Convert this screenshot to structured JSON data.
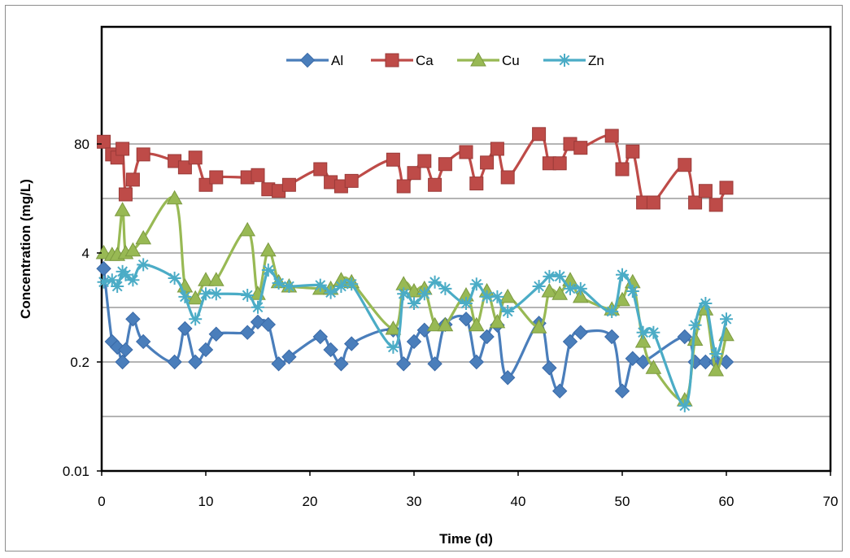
{
  "chart_data": {
    "type": "line",
    "xlabel": "Time (d)",
    "ylabel": "Concentration (mg/L)",
    "xlim": [
      0,
      70
    ],
    "x_ticks": [
      "0",
      "10",
      "20",
      "30",
      "40",
      "50",
      "60",
      "70"
    ],
    "y_scale": "log",
    "ylim": [
      0.01,
      2000
    ],
    "y_ticks": [
      "0.01",
      "0.2",
      "4",
      "80"
    ],
    "grid": "horizontal",
    "legend_position": "top-center",
    "series": [
      {
        "name": "Al",
        "color": "#4a7ebb",
        "marker": "diamond",
        "points": [
          [
            0.2,
            2.6
          ],
          [
            1,
            0.35
          ],
          [
            1.5,
            0.3
          ],
          [
            2,
            0.2
          ],
          [
            2.3,
            0.28
          ],
          [
            3,
            0.65
          ],
          [
            4,
            0.35
          ],
          [
            7,
            0.2
          ],
          [
            8,
            0.5
          ],
          [
            9,
            0.2
          ],
          [
            10,
            0.28
          ],
          [
            11,
            0.43
          ],
          [
            14,
            0.45
          ],
          [
            15,
            0.6
          ],
          [
            16,
            0.56
          ],
          [
            17,
            0.19
          ],
          [
            18,
            0.23
          ],
          [
            21,
            0.4
          ],
          [
            22,
            0.28
          ],
          [
            23,
            0.19
          ],
          [
            24,
            0.33
          ],
          [
            28,
            0.48
          ],
          [
            29,
            0.19
          ],
          [
            30,
            0.35
          ],
          [
            31,
            0.48
          ],
          [
            32,
            0.19
          ],
          [
            33,
            0.56
          ],
          [
            35,
            0.65
          ],
          [
            36,
            0.2
          ],
          [
            37,
            0.4
          ],
          [
            38,
            0.55
          ],
          [
            39,
            0.13
          ],
          [
            42,
            0.58
          ],
          [
            43,
            0.17
          ],
          [
            44,
            0.09
          ],
          [
            45,
            0.35
          ],
          [
            46,
            0.45
          ],
          [
            49,
            0.4
          ],
          [
            50,
            0.09
          ],
          [
            51,
            0.22
          ],
          [
            52,
            0.2
          ],
          [
            56,
            0.4
          ],
          [
            57,
            0.2
          ],
          [
            58,
            0.2
          ],
          [
            59,
            0.2
          ],
          [
            60,
            0.2
          ]
        ]
      },
      {
        "name": "Ca",
        "color": "#be4b48",
        "marker": "square",
        "points": [
          [
            0.2,
            85
          ],
          [
            1,
            60
          ],
          [
            1.5,
            55
          ],
          [
            2,
            70
          ],
          [
            2.3,
            20
          ],
          [
            3,
            30
          ],
          [
            4,
            60
          ],
          [
            7,
            50
          ],
          [
            8,
            42
          ],
          [
            9,
            55
          ],
          [
            10,
            26
          ],
          [
            11,
            32
          ],
          [
            14,
            32
          ],
          [
            15,
            34
          ],
          [
            16,
            23
          ],
          [
            17,
            22
          ],
          [
            18,
            26
          ],
          [
            21,
            40
          ],
          [
            22,
            28
          ],
          [
            23,
            25
          ],
          [
            24,
            29
          ],
          [
            28,
            52
          ],
          [
            29,
            25
          ],
          [
            30,
            36
          ],
          [
            31,
            50
          ],
          [
            32,
            26
          ],
          [
            33,
            46
          ],
          [
            35,
            64
          ],
          [
            36,
            27
          ],
          [
            37,
            48
          ],
          [
            38,
            70
          ],
          [
            39,
            32
          ],
          [
            42,
            105
          ],
          [
            43,
            47
          ],
          [
            44,
            47
          ],
          [
            45,
            80
          ],
          [
            46,
            72
          ],
          [
            49,
            100
          ],
          [
            50,
            40
          ],
          [
            51,
            65
          ],
          [
            52,
            16
          ],
          [
            53,
            16
          ],
          [
            56,
            45
          ],
          [
            57,
            16
          ],
          [
            58,
            22
          ],
          [
            59,
            15
          ],
          [
            60,
            24
          ]
        ]
      },
      {
        "name": "Cu",
        "color": "#98b954",
        "marker": "triangle",
        "points": [
          [
            0.2,
            4
          ],
          [
            1,
            3.8
          ],
          [
            1.5,
            3.8
          ],
          [
            2,
            13
          ],
          [
            2.3,
            4
          ],
          [
            3,
            4.3
          ],
          [
            4,
            6
          ],
          [
            7,
            18
          ],
          [
            8,
            1.6
          ],
          [
            9,
            1.15
          ],
          [
            10,
            1.9
          ],
          [
            11,
            1.9
          ],
          [
            14,
            7.5
          ],
          [
            15,
            1.3
          ],
          [
            16,
            4.3
          ],
          [
            17,
            1.8
          ],
          [
            18,
            1.6
          ],
          [
            21,
            1.5
          ],
          [
            22,
            1.5
          ],
          [
            23,
            1.9
          ],
          [
            24,
            1.8
          ],
          [
            28,
            0.5
          ],
          [
            29,
            1.7
          ],
          [
            30,
            1.4
          ],
          [
            31,
            1.5
          ],
          [
            32,
            0.55
          ],
          [
            33,
            0.55
          ],
          [
            35,
            1.25
          ],
          [
            36,
            0.55
          ],
          [
            37,
            1.4
          ],
          [
            38,
            0.6
          ],
          [
            39,
            1.2
          ],
          [
            42,
            0.52
          ],
          [
            43,
            1.4
          ],
          [
            44,
            1.3
          ],
          [
            45,
            1.9
          ],
          [
            46,
            1.2
          ],
          [
            49,
            0.85
          ],
          [
            50,
            1.1
          ],
          [
            51,
            1.8
          ],
          [
            52,
            0.35
          ],
          [
            53,
            0.17
          ],
          [
            56,
            0.07
          ],
          [
            57,
            0.37
          ],
          [
            58,
            0.85
          ],
          [
            59,
            0.16
          ],
          [
            60,
            0.42
          ]
        ]
      },
      {
        "name": "Zn",
        "color": "#4bacc6",
        "marker": "star",
        "points": [
          [
            0.2,
            1.8
          ],
          [
            1,
            1.9
          ],
          [
            1.5,
            1.6
          ],
          [
            2,
            2.4
          ],
          [
            2.3,
            2.2
          ],
          [
            3,
            1.9
          ],
          [
            4,
            2.9
          ],
          [
            7,
            2.0
          ],
          [
            8,
            1.2
          ],
          [
            9,
            0.65
          ],
          [
            10,
            1.3
          ],
          [
            11,
            1.3
          ],
          [
            14,
            1.25
          ],
          [
            15,
            0.9
          ],
          [
            16,
            2.5
          ],
          [
            17,
            1.75
          ],
          [
            18,
            1.6
          ],
          [
            21,
            1.65
          ],
          [
            22,
            1.35
          ],
          [
            23,
            1.6
          ],
          [
            24,
            1.7
          ],
          [
            28,
            0.3
          ],
          [
            29,
            1.3
          ],
          [
            30,
            1.0
          ],
          [
            31,
            1.3
          ],
          [
            32,
            1.8
          ],
          [
            33,
            1.5
          ],
          [
            35,
            1.0
          ],
          [
            36,
            1.7
          ],
          [
            37,
            1.2
          ],
          [
            38,
            1.2
          ],
          [
            39,
            0.8
          ],
          [
            42,
            1.6
          ],
          [
            43,
            2.1
          ],
          [
            44,
            2.1
          ],
          [
            45,
            1.5
          ],
          [
            46,
            1.5
          ],
          [
            49,
            0.8
          ],
          [
            50,
            2.2
          ],
          [
            51,
            1.4
          ],
          [
            52,
            0.45
          ],
          [
            53,
            0.45
          ],
          [
            56,
            0.06
          ],
          [
            57,
            0.55
          ],
          [
            58,
            1.0
          ],
          [
            59,
            0.25
          ],
          [
            60,
            0.65
          ]
        ]
      }
    ]
  }
}
